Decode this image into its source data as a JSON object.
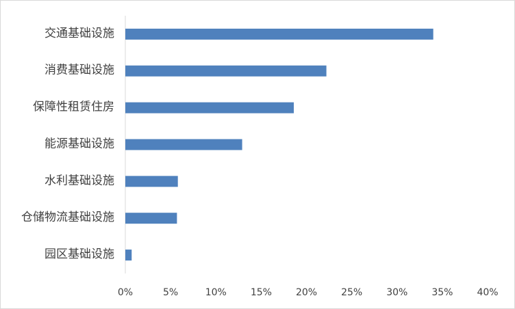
{
  "chart_data": {
    "type": "bar",
    "orientation": "horizontal",
    "categories": [
      "交通基础设施",
      "消费基础设施",
      "保障性租赁住房",
      "能源基础设施",
      "水利基础设施",
      "仓储物流基础设施",
      "园区基础设施"
    ],
    "values": [
      34,
      22.2,
      18.6,
      12.9,
      5.8,
      5.7,
      0.7
    ],
    "color": "#4f81bd",
    "xlim": [
      0,
      40
    ],
    "xticks": [
      {
        "value": 0,
        "label": "0%"
      },
      {
        "value": 5,
        "label": "5%"
      },
      {
        "value": 10,
        "label": "10%"
      },
      {
        "value": 15,
        "label": "15%"
      },
      {
        "value": 20,
        "label": "20%"
      },
      {
        "value": 25,
        "label": "25%"
      },
      {
        "value": 30,
        "label": "30%"
      },
      {
        "value": 35,
        "label": "35%"
      },
      {
        "value": 40,
        "label": "40%"
      }
    ],
    "grid": false
  }
}
